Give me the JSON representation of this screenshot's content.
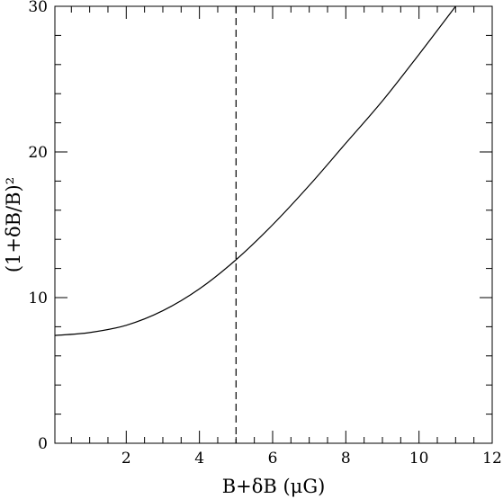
{
  "chart_data": {
    "type": "line",
    "xlabel": "B+δB  (μG)",
    "ylabel": "(1+δB/B)²",
    "xlim": [
      0.05,
      12
    ],
    "ylim": [
      0,
      30
    ],
    "x_ticks": [
      {
        "value": 2,
        "label": "2"
      },
      {
        "value": 4,
        "label": "4"
      },
      {
        "value": 6,
        "label": "6"
      },
      {
        "value": 8,
        "label": "8"
      },
      {
        "value": 10,
        "label": "10"
      },
      {
        "value": 12,
        "label": "12"
      }
    ],
    "y_ticks": [
      {
        "value": 0,
        "label": "0"
      },
      {
        "value": 10,
        "label": "10"
      },
      {
        "value": 20,
        "label": "20"
      },
      {
        "value": 30,
        "label": "30"
      }
    ],
    "x_minor_step": 0.5,
    "y_minor_step": 2,
    "grid": false,
    "series": [
      {
        "style": "solid",
        "color": "#000000",
        "points": [
          {
            "x": 0.05,
            "y": 7.4
          },
          {
            "x": 1.0,
            "y": 7.6
          },
          {
            "x": 2.0,
            "y": 8.1
          },
          {
            "x": 3.0,
            "y": 9.1
          },
          {
            "x": 4.0,
            "y": 10.6
          },
          {
            "x": 5.0,
            "y": 12.6
          },
          {
            "x": 6.0,
            "y": 15.0
          },
          {
            "x": 7.0,
            "y": 17.7
          },
          {
            "x": 8.0,
            "y": 20.6
          },
          {
            "x": 9.0,
            "y": 23.5
          },
          {
            "x": 10.0,
            "y": 26.7
          },
          {
            "x": 11.0,
            "y": 30.0
          }
        ]
      }
    ],
    "vertical_lines": [
      {
        "x": 5.0,
        "style": "dashed",
        "color": "#000000"
      }
    ]
  }
}
